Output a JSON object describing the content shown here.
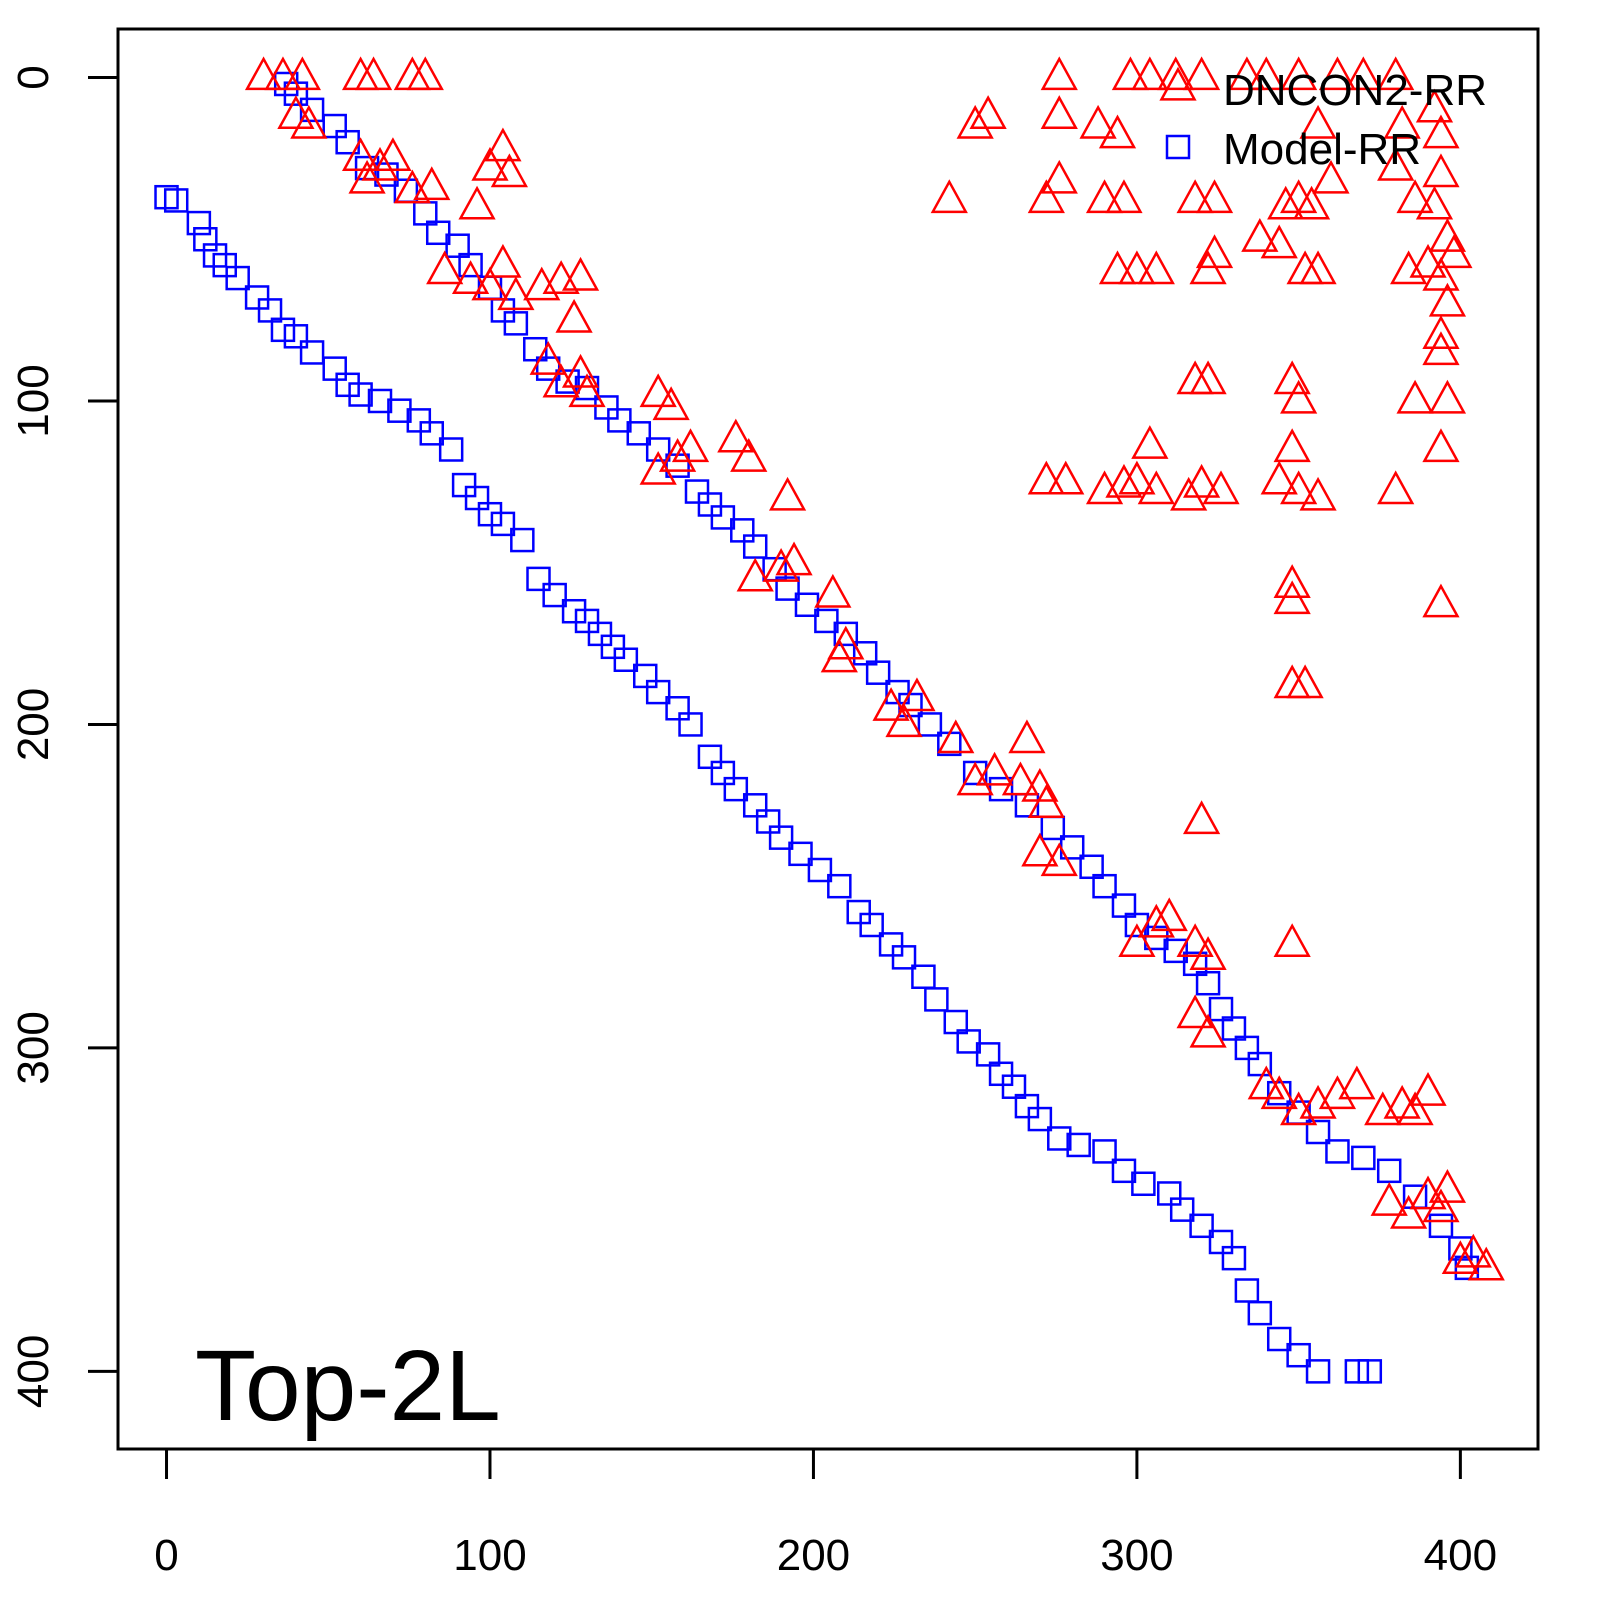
{
  "chart_data": {
    "type": "scatter",
    "title": "",
    "annotation": "Top-2L",
    "xlabel": "",
    "ylabel": "",
    "xlim": [
      -15,
      424
    ],
    "ylim": [
      424,
      -15
    ],
    "y_axis_inverted": true,
    "grid": false,
    "legend_position": "top-right",
    "x_ticks": [
      "0",
      "100",
      "200",
      "300",
      "400"
    ],
    "y_ticks": [
      "0",
      "100",
      "200",
      "300",
      "400"
    ],
    "x_tick_values": [
      0,
      100,
      200,
      300,
      400
    ],
    "y_tick_values": [
      0,
      100,
      200,
      300,
      400
    ],
    "series": [
      {
        "name": "DNCON2-RR",
        "marker": "triangle",
        "color": "#ff0000",
        "points": [
          [
            30,
            0
          ],
          [
            36,
            0
          ],
          [
            42,
            0
          ],
          [
            60,
            0
          ],
          [
            64,
            0
          ],
          [
            76,
            0
          ],
          [
            80,
            0
          ],
          [
            40,
            12
          ],
          [
            44,
            15
          ],
          [
            60,
            25
          ],
          [
            62,
            32
          ],
          [
            66,
            28
          ],
          [
            70,
            25
          ],
          [
            76,
            35
          ],
          [
            82,
            34
          ],
          [
            96,
            40
          ],
          [
            100,
            28
          ],
          [
            104,
            22
          ],
          [
            106,
            30
          ],
          [
            86,
            60
          ],
          [
            94,
            63
          ],
          [
            100,
            65
          ],
          [
            104,
            58
          ],
          [
            108,
            68
          ],
          [
            116,
            65
          ],
          [
            122,
            63
          ],
          [
            128,
            62
          ],
          [
            126,
            75
          ],
          [
            118,
            88
          ],
          [
            122,
            95
          ],
          [
            128,
            92
          ],
          [
            130,
            98
          ],
          [
            152,
            98
          ],
          [
            156,
            102
          ],
          [
            152,
            122
          ],
          [
            158,
            118
          ],
          [
            162,
            115
          ],
          [
            176,
            112
          ],
          [
            180,
            118
          ],
          [
            192,
            130
          ],
          [
            182,
            155
          ],
          [
            190,
            152
          ],
          [
            194,
            150
          ],
          [
            206,
            160
          ],
          [
            208,
            180
          ],
          [
            210,
            176
          ],
          [
            224,
            195
          ],
          [
            228,
            200
          ],
          [
            232,
            192
          ],
          [
            244,
            205
          ],
          [
            250,
            218
          ],
          [
            256,
            215
          ],
          [
            264,
            218
          ],
          [
            266,
            205
          ],
          [
            270,
            220
          ],
          [
            272,
            225
          ],
          [
            270,
            240
          ],
          [
            276,
            243
          ],
          [
            300,
            268
          ],
          [
            306,
            262
          ],
          [
            310,
            260
          ],
          [
            318,
            268
          ],
          [
            322,
            272
          ],
          [
            318,
            290
          ],
          [
            322,
            296
          ],
          [
            340,
            312
          ],
          [
            344,
            315
          ],
          [
            350,
            320
          ],
          [
            356,
            318
          ],
          [
            362,
            315
          ],
          [
            368,
            312
          ],
          [
            376,
            320
          ],
          [
            382,
            318
          ],
          [
            386,
            320
          ],
          [
            390,
            314
          ],
          [
            378,
            348
          ],
          [
            384,
            352
          ],
          [
            390,
            346
          ],
          [
            394,
            350
          ],
          [
            396,
            344
          ],
          [
            400,
            366
          ],
          [
            404,
            364
          ],
          [
            408,
            368
          ],
          [
            276,
            0
          ],
          [
            276,
            12
          ],
          [
            276,
            32
          ],
          [
            272,
            38
          ],
          [
            242,
            38
          ],
          [
            250,
            15
          ],
          [
            254,
            12
          ],
          [
            288,
            15
          ],
          [
            294,
            18
          ],
          [
            298,
            0
          ],
          [
            304,
            0
          ],
          [
            312,
            0
          ],
          [
            320,
            0
          ],
          [
            334,
            0
          ],
          [
            340,
            0
          ],
          [
            350,
            0
          ],
          [
            356,
            15
          ],
          [
            362,
            0
          ],
          [
            370,
            0
          ],
          [
            380,
            0
          ],
          [
            382,
            15
          ],
          [
            392,
            10
          ],
          [
            394,
            18
          ],
          [
            296,
            38
          ],
          [
            290,
            38
          ],
          [
            294,
            60
          ],
          [
            300,
            60
          ],
          [
            306,
            60
          ],
          [
            318,
            38
          ],
          [
            324,
            38
          ],
          [
            322,
            60
          ],
          [
            324,
            55
          ],
          [
            338,
            50
          ],
          [
            344,
            52
          ],
          [
            346,
            40
          ],
          [
            350,
            38
          ],
          [
            354,
            40
          ],
          [
            352,
            60
          ],
          [
            356,
            60
          ],
          [
            360,
            32
          ],
          [
            380,
            28
          ],
          [
            386,
            38
          ],
          [
            392,
            40
          ],
          [
            394,
            30
          ],
          [
            396,
            50
          ],
          [
            398,
            55
          ],
          [
            384,
            60
          ],
          [
            390,
            58
          ],
          [
            394,
            62
          ],
          [
            396,
            70
          ],
          [
            394,
            80
          ],
          [
            394,
            85
          ],
          [
            386,
            100
          ],
          [
            396,
            100
          ],
          [
            394,
            115
          ],
          [
            318,
            94
          ],
          [
            322,
            94
          ],
          [
            348,
            94
          ],
          [
            350,
            100
          ],
          [
            348,
            115
          ],
          [
            304,
            114
          ],
          [
            272,
            125
          ],
          [
            278,
            125
          ],
          [
            290,
            128
          ],
          [
            296,
            126
          ],
          [
            300,
            125
          ],
          [
            306,
            128
          ],
          [
            316,
            130
          ],
          [
            320,
            126
          ],
          [
            326,
            128
          ],
          [
            344,
            125
          ],
          [
            350,
            128
          ],
          [
            356,
            130
          ],
          [
            380,
            128
          ],
          [
            348,
            157
          ],
          [
            348,
            162
          ],
          [
            394,
            163
          ],
          [
            348,
            188
          ],
          [
            352,
            188
          ],
          [
            320,
            230
          ],
          [
            348,
            268
          ]
        ]
      },
      {
        "name": "Model-RR",
        "marker": "square",
        "color": "#0000ff",
        "points": [
          [
            0,
            37
          ],
          [
            3,
            38
          ],
          [
            10,
            45
          ],
          [
            12,
            50
          ],
          [
            15,
            55
          ],
          [
            18,
            58
          ],
          [
            22,
            62
          ],
          [
            28,
            68
          ],
          [
            32,
            72
          ],
          [
            36,
            78
          ],
          [
            40,
            80
          ],
          [
            45,
            85
          ],
          [
            52,
            90
          ],
          [
            56,
            95
          ],
          [
            60,
            98
          ],
          [
            66,
            100
          ],
          [
            72,
            103
          ],
          [
            78,
            106
          ],
          [
            82,
            110
          ],
          [
            88,
            115
          ],
          [
            92,
            126
          ],
          [
            96,
            130
          ],
          [
            100,
            135
          ],
          [
            104,
            138
          ],
          [
            110,
            143
          ],
          [
            115,
            155
          ],
          [
            120,
            160
          ],
          [
            126,
            165
          ],
          [
            130,
            168
          ],
          [
            134,
            172
          ],
          [
            138,
            176
          ],
          [
            142,
            180
          ],
          [
            148,
            185
          ],
          [
            152,
            190
          ],
          [
            158,
            195
          ],
          [
            162,
            200
          ],
          [
            168,
            210
          ],
          [
            172,
            215
          ],
          [
            176,
            220
          ],
          [
            182,
            225
          ],
          [
            186,
            230
          ],
          [
            190,
            235
          ],
          [
            196,
            240
          ],
          [
            202,
            245
          ],
          [
            208,
            250
          ],
          [
            214,
            258
          ],
          [
            218,
            262
          ],
          [
            224,
            268
          ],
          [
            228,
            272
          ],
          [
            234,
            278
          ],
          [
            238,
            285
          ],
          [
            244,
            292
          ],
          [
            248,
            298
          ],
          [
            254,
            302
          ],
          [
            258,
            308
          ],
          [
            262,
            312
          ],
          [
            266,
            318
          ],
          [
            270,
            322
          ],
          [
            276,
            328
          ],
          [
            282,
            330
          ],
          [
            290,
            332
          ],
          [
            296,
            338
          ],
          [
            302,
            342
          ],
          [
            310,
            345
          ],
          [
            314,
            350
          ],
          [
            320,
            355
          ],
          [
            326,
            360
          ],
          [
            330,
            365
          ],
          [
            334,
            375
          ],
          [
            338,
            382
          ],
          [
            344,
            390
          ],
          [
            350,
            395
          ],
          [
            356,
            400
          ],
          [
            368,
            400
          ],
          [
            372,
            400
          ],
          [
            37,
            2
          ],
          [
            40,
            5
          ],
          [
            45,
            10
          ],
          [
            52,
            15
          ],
          [
            56,
            20
          ],
          [
            62,
            28
          ],
          [
            68,
            30
          ],
          [
            74,
            35
          ],
          [
            80,
            42
          ],
          [
            84,
            48
          ],
          [
            90,
            52
          ],
          [
            94,
            58
          ],
          [
            100,
            65
          ],
          [
            104,
            72
          ],
          [
            108,
            76
          ],
          [
            114,
            84
          ],
          [
            118,
            90
          ],
          [
            124,
            94
          ],
          [
            130,
            96
          ],
          [
            136,
            102
          ],
          [
            140,
            106
          ],
          [
            146,
            110
          ],
          [
            152,
            115
          ],
          [
            158,
            120
          ],
          [
            164,
            128
          ],
          [
            168,
            132
          ],
          [
            172,
            136
          ],
          [
            178,
            140
          ],
          [
            182,
            145
          ],
          [
            188,
            152
          ],
          [
            192,
            158
          ],
          [
            198,
            163
          ],
          [
            204,
            168
          ],
          [
            210,
            172
          ],
          [
            216,
            178
          ],
          [
            220,
            184
          ],
          [
            226,
            190
          ],
          [
            230,
            194
          ],
          [
            236,
            200
          ],
          [
            242,
            206
          ],
          [
            250,
            215
          ],
          [
            258,
            220
          ],
          [
            266,
            225
          ],
          [
            274,
            232
          ],
          [
            280,
            238
          ],
          [
            286,
            244
          ],
          [
            290,
            250
          ],
          [
            296,
            256
          ],
          [
            300,
            262
          ],
          [
            306,
            266
          ],
          [
            312,
            270
          ],
          [
            318,
            274
          ],
          [
            322,
            280
          ],
          [
            326,
            288
          ],
          [
            330,
            294
          ],
          [
            334,
            300
          ],
          [
            338,
            305
          ],
          [
            344,
            314
          ],
          [
            350,
            320
          ],
          [
            356,
            326
          ],
          [
            362,
            332
          ],
          [
            370,
            334
          ],
          [
            378,
            338
          ],
          [
            386,
            346
          ],
          [
            394,
            355
          ],
          [
            400,
            362
          ],
          [
            402,
            368
          ]
        ]
      }
    ]
  }
}
